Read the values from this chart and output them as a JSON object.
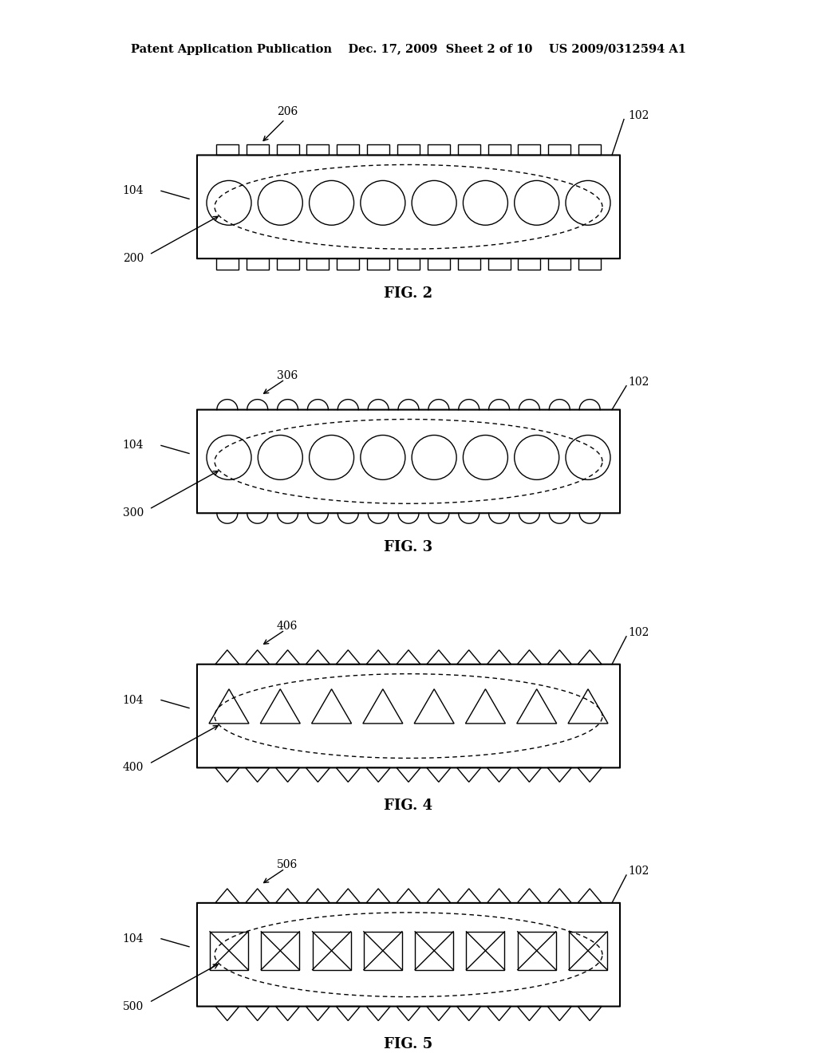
{
  "header_left": "Patent Application Publication",
  "header_mid": "Dec. 17, 2009  Sheet 2 of 10",
  "header_right": "US 2009/0312594 A1",
  "bg_color": "#ffffff",
  "line_color": "#000000",
  "fig_labels": [
    "FIG. 2",
    "FIG. 3",
    "FIG. 4",
    "FIG. 5"
  ],
  "ref_numbers": {
    "fig2": {
      "main": "200",
      "body": "102",
      "tissue": "104",
      "feature": "206"
    },
    "fig3": {
      "main": "300",
      "body": "102",
      "tissue": "104",
      "feature": "306"
    },
    "fig4": {
      "main": "400",
      "body": "102",
      "tissue": "104",
      "feature": "406"
    },
    "fig5": {
      "main": "500",
      "body": "102",
      "tissue": "104",
      "feature": "506"
    }
  },
  "n_seeds": 8,
  "n_seeds_fig5": 8
}
